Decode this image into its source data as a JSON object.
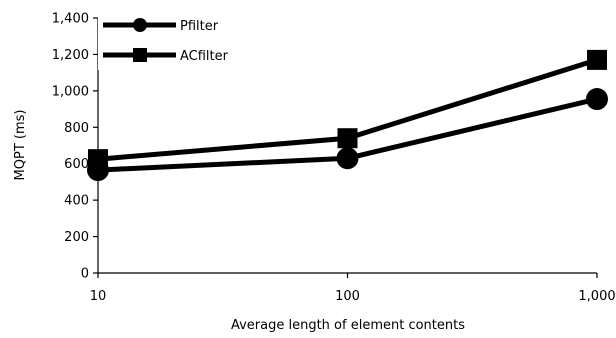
{
  "chart_data": {
    "type": "line",
    "title": "",
    "xlabel": "Average length of element contents",
    "ylabel": "MQPT (ms)",
    "x_scale": "log",
    "x": [
      10,
      100,
      1000
    ],
    "x_tick_labels": [
      "10",
      "100",
      "1,000"
    ],
    "ylim": [
      0,
      1400
    ],
    "y_ticks": [
      0,
      200,
      400,
      600,
      800,
      1000,
      1200,
      1400
    ],
    "y_tick_labels": [
      "0",
      "200",
      "400",
      "600",
      "800",
      "1,000",
      "1,200",
      "1,400"
    ],
    "grid": false,
    "legend_position": "top-left",
    "series": [
      {
        "name": "Pfilter",
        "marker": "circle",
        "color": "#000000",
        "values": [
          565,
          630,
          955
        ]
      },
      {
        "name": "ACfilter",
        "marker": "square",
        "color": "#000000",
        "values": [
          625,
          740,
          1170
        ]
      }
    ]
  }
}
